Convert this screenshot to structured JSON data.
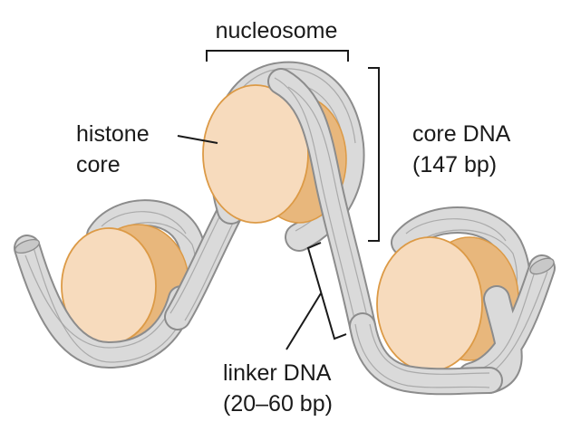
{
  "labels": {
    "nucleosome": "nucleosome",
    "histone_line1": "histone",
    "histone_line2": "core",
    "core_dna_line1": "core DNA",
    "core_dna_line2": "(147 bp)",
    "linker_dna_line1": "linker DNA",
    "linker_dna_line2": "(20–60 bp)"
  },
  "colors": {
    "histone_fill": "#f7dbbd",
    "histone_edge": "#dc9a46",
    "histone_side": "#e8b77c",
    "dna_fill": "#d9d9d9",
    "dna_edge": "#8c8c8c",
    "text": "#1a1a1a"
  }
}
